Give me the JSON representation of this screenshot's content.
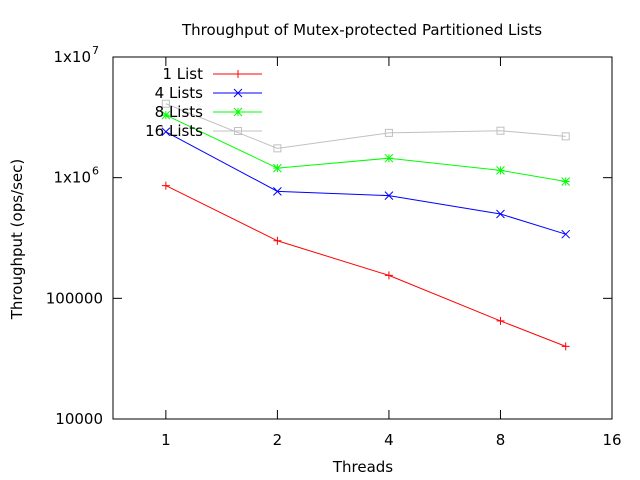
{
  "chart_data": {
    "type": "line",
    "title": "Throughput of Mutex-protected Partitioned Lists",
    "xlabel": "Threads",
    "ylabel": "Throughput (ops/sec)",
    "x_scale": "log2",
    "y_scale": "log10",
    "xlim": [
      0.72,
      16
    ],
    "ylim": [
      10000,
      10000000
    ],
    "x_ticks": [
      {
        "value": 1,
        "label": "1"
      },
      {
        "value": 2,
        "label": "2"
      },
      {
        "value": 4,
        "label": "4"
      },
      {
        "value": 8,
        "label": "8"
      },
      {
        "value": 16,
        "label": "16"
      }
    ],
    "y_ticks": [
      {
        "value": 10000,
        "label": "10000",
        "sup": ""
      },
      {
        "value": 100000,
        "label": "100000",
        "sup": ""
      },
      {
        "value": 1000000,
        "label": "1x10",
        "sup": "6"
      },
      {
        "value": 10000000,
        "label": "1x10",
        "sup": "7"
      }
    ],
    "legend_position": "top-left",
    "grid": false,
    "series": [
      {
        "name": "1 List",
        "color": "#ff0000",
        "marker": "plus",
        "x": [
          1,
          2,
          4,
          8,
          12
        ],
        "y": [
          860000,
          300000,
          155000,
          65000,
          40000
        ]
      },
      {
        "name": "4 Lists",
        "color": "#0000ff",
        "marker": "cross",
        "x": [
          1,
          2,
          4,
          8,
          12
        ],
        "y": [
          2400000,
          770000,
          710000,
          500000,
          340000
        ]
      },
      {
        "name": "8 Lists",
        "color": "#00ff00",
        "marker": "star",
        "x": [
          1,
          2,
          4,
          8,
          12
        ],
        "y": [
          3300000,
          1200000,
          1450000,
          1150000,
          930000
        ]
      },
      {
        "name": "16 Lists",
        "color": "#c0c0c0",
        "marker": "square",
        "x": [
          1,
          2,
          4,
          8,
          12
        ],
        "y": [
          4100000,
          1750000,
          2350000,
          2450000,
          2200000
        ]
      }
    ]
  }
}
